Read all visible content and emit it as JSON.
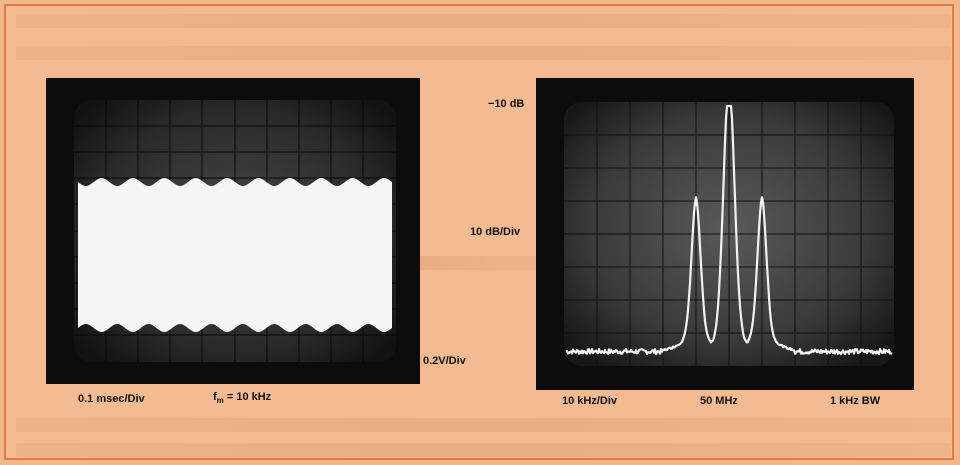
{
  "left_scope": {
    "time_scale": "0.1 msec/Div",
    "modulation_freq_prefix": "f",
    "modulation_freq_sub": "m",
    "modulation_freq_value": " = 10 kHz",
    "vertical_scale": "0.2V/Div"
  },
  "right_scope": {
    "ref_level": "−10 dB",
    "vertical_scale": "10 dB/Div",
    "horizontal_scale": "10 kHz/Div",
    "center_freq": "50 MHz",
    "bandwidth": "1 kHz  BW"
  },
  "colors": {
    "page_background": "#f2b68c",
    "border": "#e07a3e",
    "bezel": "#0c0c0c",
    "trace": "#f4f4f4"
  }
}
